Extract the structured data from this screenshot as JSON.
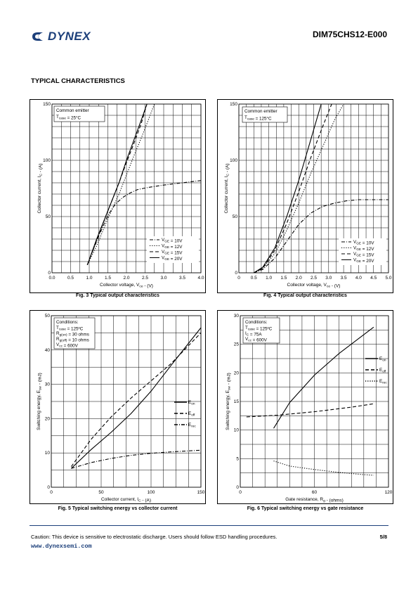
{
  "header": {
    "brand": "DYNEX",
    "doc_id": "DIM75CHS12-E000"
  },
  "section_title": "TYPICAL CHARACTERISTICS",
  "footer": {
    "caution": "Caution: This device is sensitive to electrostatic discharge. Users should follow ESD handling procedures.",
    "page": "5/8",
    "website": "www.dynexsemi.com"
  },
  "chart_data": [
    {
      "id": "fig3",
      "type": "line",
      "caption": "Fig. 3 Typical output characteristics",
      "xlabel": "Collector voltage, V_ce - (V)",
      "ylabel": "Collector current, I_C - (A)",
      "xlim": [
        0,
        4.0
      ],
      "ylim": [
        0,
        150
      ],
      "xticks": [
        0,
        0.5,
        1.0,
        1.5,
        2.0,
        2.5,
        3.0,
        3.5,
        4.0
      ],
      "xtick_labels": [
        "0.0",
        "0.5",
        "1.0",
        "1.5",
        "2.0",
        "2.5",
        "3.0",
        "3.5",
        "4.0"
      ],
      "yticks": [
        0,
        50,
        100,
        150
      ],
      "ytick_labels": [
        "0",
        "50",
        "100",
        "150"
      ],
      "grid": true,
      "conditions": [
        "Common emitter",
        "T_case = 25°C"
      ],
      "legend_position": "bottom-right",
      "series": [
        {
          "name": "V_GE = 10V",
          "dash": "dashdot",
          "x": [
            0.95,
            1.1,
            1.3,
            1.5,
            1.7,
            1.9,
            2.1,
            2.3,
            2.6,
            3.0,
            3.5,
            4.0
          ],
          "y": [
            7,
            20,
            36,
            51,
            61,
            67,
            71,
            74,
            76,
            78,
            80,
            82
          ]
        },
        {
          "name": "V_GE = 12V",
          "dash": "dotted",
          "x": [
            0.95,
            1.2,
            1.5,
            1.8,
            2.0,
            2.2,
            2.4,
            2.6,
            2.75
          ],
          "y": [
            7,
            24,
            48,
            70,
            87,
            104,
            120,
            137,
            150
          ]
        },
        {
          "name": "V_GE = 15V",
          "dash": "dashed",
          "x": [
            0.95,
            1.2,
            1.5,
            1.8,
            2.0,
            2.2,
            2.4,
            2.55
          ],
          "y": [
            7,
            29,
            55,
            80,
            98,
            115,
            133,
            150
          ]
        },
        {
          "name": "V_GE = 20V",
          "dash": "solid",
          "x": [
            0.95,
            1.2,
            1.5,
            1.8,
            2.0,
            2.2,
            2.4,
            2.55
          ],
          "y": [
            7,
            30,
            55,
            80,
            100,
            118,
            136,
            150
          ]
        }
      ]
    },
    {
      "id": "fig4",
      "type": "line",
      "caption": "Fig. 4 Typical output characteristics",
      "xlabel": "Collector voltage, V_ce - (V)",
      "ylabel": "Collector current, I_C - (A)",
      "xlim": [
        0,
        5.0
      ],
      "ylim": [
        0,
        150
      ],
      "xticks": [
        0,
        0.5,
        1.0,
        1.5,
        2.0,
        2.5,
        3.0,
        3.5,
        4.0,
        4.5,
        5.0
      ],
      "xtick_labels": [
        "0",
        "0.5",
        "1.0",
        "1.5",
        "2.0",
        "2.5",
        "3.0",
        "3.5",
        "4.0",
        "4.5",
        "5.0"
      ],
      "yticks": [
        0,
        50,
        100,
        150
      ],
      "ytick_labels": [
        "0",
        "50",
        "100",
        "150"
      ],
      "grid": true,
      "conditions": [
        "Common emitter",
        "T_case = 125°C"
      ],
      "legend_position": "bottom-right",
      "series": [
        {
          "name": "V_GE = 10V",
          "dash": "dashdot",
          "x": [
            0.5,
            0.8,
            1.2,
            1.6,
            2.0,
            2.4,
            2.8,
            3.2,
            3.6,
            4.0,
            4.5,
            5.0
          ],
          "y": [
            0,
            3,
            13,
            28,
            43,
            53,
            59,
            62,
            64,
            65,
            65,
            65
          ]
        },
        {
          "name": "V_GE = 12V",
          "dash": "dotted",
          "x": [
            0.5,
            0.8,
            1.2,
            1.6,
            2.0,
            2.4,
            2.8,
            3.2,
            3.5
          ],
          "y": [
            0,
            4,
            17,
            38,
            62,
            88,
            112,
            136,
            150
          ]
        },
        {
          "name": "V_GE = 15V",
          "dash": "dashed",
          "x": [
            0.5,
            0.8,
            1.2,
            1.6,
            2.0,
            2.4,
            2.8,
            3.1
          ],
          "y": [
            0,
            4,
            20,
            44,
            72,
            102,
            130,
            150
          ]
        },
        {
          "name": "V_GE = 20V",
          "dash": "solid",
          "x": [
            0.5,
            0.8,
            1.2,
            1.6,
            2.0,
            2.4,
            2.75
          ],
          "y": [
            0,
            5,
            22,
            50,
            82,
            118,
            150
          ]
        }
      ]
    },
    {
      "id": "fig5",
      "type": "line",
      "caption": "Fig. 5 Typical switching energy vs collector current",
      "xlabel": "Collector current, I_C - (A)",
      "ylabel": "Switching energy, E_sw - (mJ)",
      "xlim": [
        0,
        150
      ],
      "ylim": [
        0,
        50
      ],
      "xticks": [
        0,
        50,
        100,
        150
      ],
      "xtick_labels": [
        "0",
        "50",
        "100",
        "150"
      ],
      "yticks": [
        0,
        10,
        20,
        30,
        40,
        50
      ],
      "ytick_labels": [
        "0",
        "10",
        "20",
        "30",
        "40",
        "50"
      ],
      "grid": true,
      "conditions": [
        "Conditions:",
        "T_case = 125ºC",
        "R_g(on) = 30 ohms",
        "R_g(off) = 10 ohms",
        "V_cc = 600V"
      ],
      "legend_position": "right",
      "series": [
        {
          "name": "E_on",
          "dash": "solid",
          "x": [
            20,
            40,
            60,
            80,
            100,
            120,
            150
          ],
          "y": [
            5.5,
            11,
            16,
            21.5,
            28,
            35.5,
            46.5
          ]
        },
        {
          "name": "E_off",
          "dash": "dashed",
          "x": [
            20,
            40,
            60,
            80,
            100,
            120,
            150
          ],
          "y": [
            6,
            14,
            20.5,
            26,
            31,
            36,
            45
          ]
        },
        {
          "name": "E_rec",
          "dash": "dashdot",
          "x": [
            20,
            40,
            60,
            80,
            100,
            120,
            150
          ],
          "y": [
            5.5,
            7.2,
            8.4,
            9.3,
            9.9,
            10.3,
            10.8
          ]
        }
      ]
    },
    {
      "id": "fig6",
      "type": "line",
      "caption": "Fig. 6 Typical switching energy vs gate resistance",
      "xlabel": "Gate resistance, R_g - (ohms)",
      "ylabel": "Switching energy, E_sw - (mJ)",
      "xlim": [
        0,
        120
      ],
      "ylim": [
        0,
        30
      ],
      "xticks": [
        0,
        60,
        120
      ],
      "xtick_labels": [
        "0",
        "60",
        "120"
      ],
      "yticks": [
        0,
        5,
        10,
        15,
        20,
        25,
        30
      ],
      "ytick_labels": [
        "0",
        "5",
        "10",
        "15",
        "20",
        "25",
        "30"
      ],
      "grid": true,
      "conditions": [
        "Conditions:",
        "T_case = 125ºC",
        "I_C = 75A",
        "V_cc = 600V"
      ],
      "legend_position": "right",
      "series": [
        {
          "name": "E_on",
          "dash": "solid",
          "x": [
            27,
            40,
            60,
            80,
            108
          ],
          "y": [
            10.3,
            14.8,
            19.6,
            23.4,
            28
          ]
        },
        {
          "name": "E_off",
          "dash": "dashed",
          "x": [
            5,
            30,
            60,
            90,
            108
          ],
          "y": [
            12.3,
            12.6,
            13.2,
            14,
            14.6
          ]
        },
        {
          "name": "E_rec",
          "dash": "dotted",
          "x": [
            27,
            40,
            60,
            80,
            100,
            108
          ],
          "y": [
            4.6,
            3.7,
            3.1,
            2.6,
            2.2,
            2.1
          ]
        }
      ]
    }
  ]
}
